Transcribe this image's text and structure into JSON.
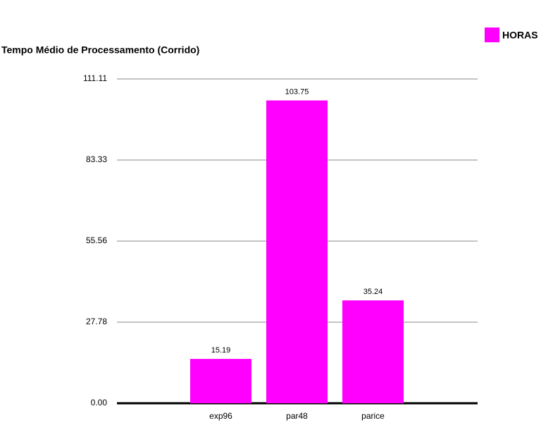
{
  "chart_data": {
    "type": "bar",
    "title": "Tempo Médio de Processamento (Corrido)",
    "categories": [
      "exp96",
      "par48",
      "parice"
    ],
    "series": [
      {
        "name": "HORAS",
        "color": "#ff00ff",
        "values": [
          15.19,
          103.75,
          35.24
        ]
      }
    ],
    "ylim": [
      0,
      111.11
    ],
    "yticks": [
      {
        "value": 0,
        "label": "0.00"
      },
      27.78,
      55.56,
      83.33,
      111.11
    ],
    "grid": true,
    "legend": "top-right"
  }
}
